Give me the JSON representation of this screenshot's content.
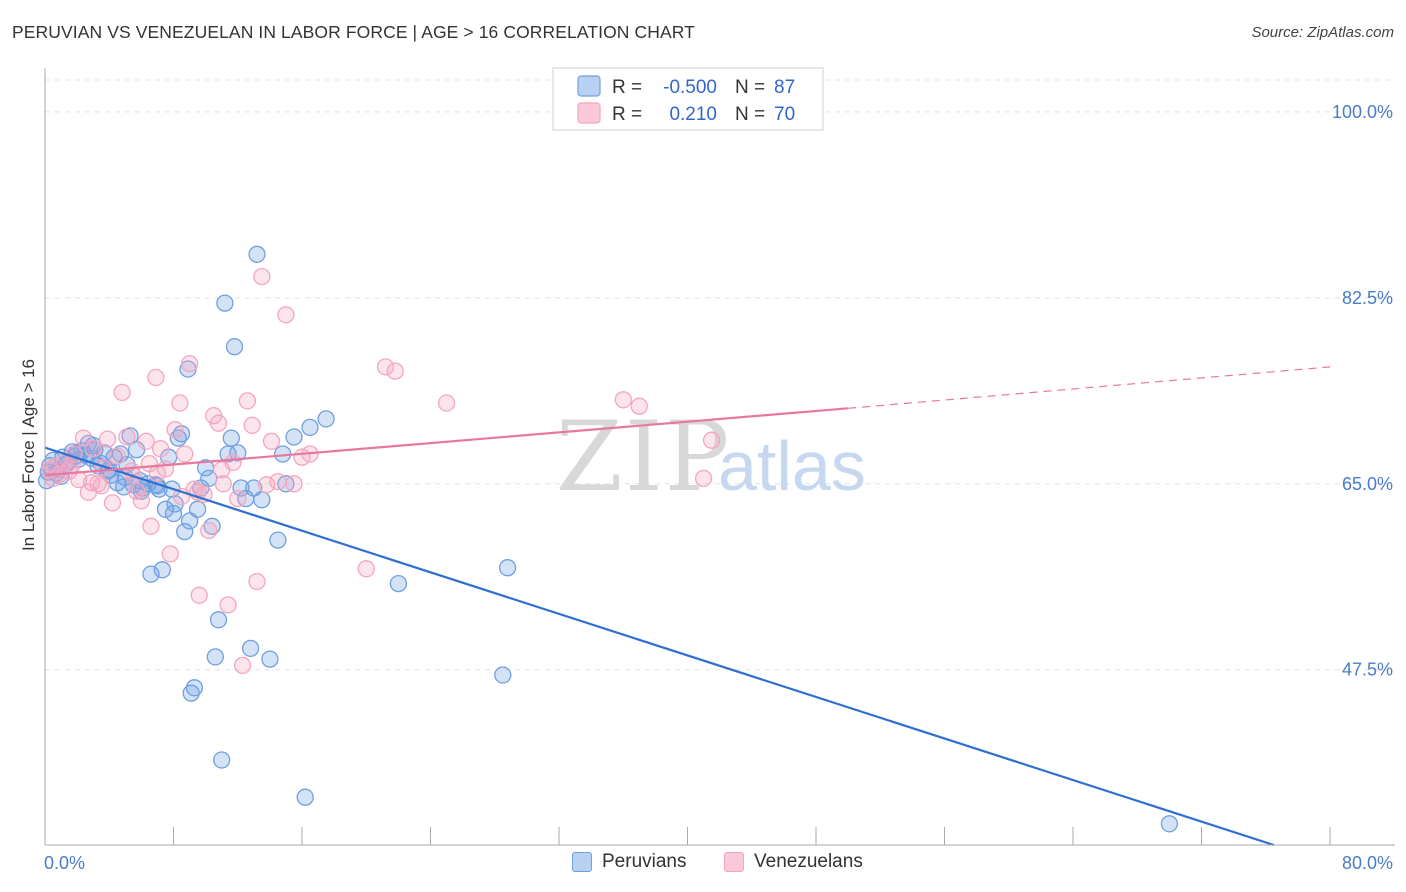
{
  "chart_data": {
    "type": "scatter",
    "title": "PERUVIAN VS VENEZUELAN IN LABOR FORCE | AGE > 16 CORRELATION CHART",
    "source": "Source: ZipAtlas.com",
    "xlabel": "",
    "ylabel": "In Labor Force | Age > 16",
    "xlim": [
      0,
      80
    ],
    "ylim": [
      31,
      103
    ],
    "x_tick_labels": [
      "0.0%",
      "80.0%"
    ],
    "y_ticks": [
      100,
      82.5,
      65,
      47.5
    ],
    "y_tick_labels": [
      "100.0%",
      "82.5%",
      "65.0%",
      "47.5%"
    ],
    "watermark": "ZIPatlas",
    "legend": {
      "r_label": "R =",
      "n_label": "N =",
      "rows": [
        {
          "name": "Peruvians",
          "r": "-0.500",
          "n": "87"
        },
        {
          "name": "Venezuelans",
          "r": "0.210",
          "n": "70"
        }
      ]
    },
    "series": [
      {
        "name": "Peruvians",
        "color": "#6fa0e0",
        "line_color": "#2e6fd1",
        "trend": {
          "x0": 0,
          "y0": 68.4,
          "x1": 76.5,
          "y1": 31.0,
          "dashed_to": null
        },
        "points": [
          [
            0.1,
            65.3
          ],
          [
            0.3,
            66.7
          ],
          [
            0.5,
            67.2
          ],
          [
            0.7,
            66.0
          ],
          [
            0.9,
            66.4
          ],
          [
            1.1,
            67.5
          ],
          [
            1.3,
            66.8
          ],
          [
            1.5,
            67.1
          ],
          [
            1.7,
            68.0
          ],
          [
            1.9,
            67.6
          ],
          [
            2.1,
            67.3
          ],
          [
            2.3,
            68.1
          ],
          [
            2.5,
            67.7
          ],
          [
            2.7,
            68.8
          ],
          [
            2.9,
            67.4
          ],
          [
            3.1,
            68.2
          ],
          [
            3.3,
            66.7
          ],
          [
            3.5,
            66.9
          ],
          [
            3.7,
            67.9
          ],
          [
            3.9,
            66.2
          ],
          [
            4.1,
            65.8
          ],
          [
            4.3,
            67.5
          ],
          [
            4.5,
            65.1
          ],
          [
            4.7,
            67.8
          ],
          [
            4.9,
            64.7
          ],
          [
            5.1,
            66.8
          ],
          [
            5.3,
            69.5
          ],
          [
            5.5,
            64.9
          ],
          [
            5.7,
            68.2
          ],
          [
            5.9,
            65.3
          ],
          [
            6.1,
            64.6
          ],
          [
            6.4,
            65.0
          ],
          [
            6.6,
            56.5
          ],
          [
            6.9,
            64.9
          ],
          [
            7.1,
            64.5
          ],
          [
            7.3,
            56.9
          ],
          [
            7.5,
            62.6
          ],
          [
            7.7,
            67.5
          ],
          [
            7.9,
            64.5
          ],
          [
            8.1,
            63.1
          ],
          [
            8.3,
            69.3
          ],
          [
            8.5,
            69.7
          ],
          [
            8.7,
            60.5
          ],
          [
            8.9,
            75.8
          ],
          [
            9.1,
            45.3
          ],
          [
            9.3,
            45.8
          ],
          [
            9.5,
            62.6
          ],
          [
            9.7,
            64.6
          ],
          [
            10.0,
            66.5
          ],
          [
            10.2,
            65.5
          ],
          [
            10.4,
            61.0
          ],
          [
            10.6,
            48.7
          ],
          [
            10.8,
            52.2
          ],
          [
            11.0,
            39.0
          ],
          [
            11.2,
            82.0
          ],
          [
            11.4,
            67.8
          ],
          [
            11.6,
            69.3
          ],
          [
            11.8,
            77.9
          ],
          [
            12.0,
            67.9
          ],
          [
            12.2,
            64.6
          ],
          [
            12.5,
            63.6
          ],
          [
            12.8,
            49.5
          ],
          [
            13.0,
            64.6
          ],
          [
            13.2,
            86.6
          ],
          [
            13.5,
            63.5
          ],
          [
            14.0,
            48.5
          ],
          [
            14.5,
            59.7
          ],
          [
            14.8,
            67.8
          ],
          [
            15.0,
            65.0
          ],
          [
            15.5,
            69.4
          ],
          [
            16.2,
            35.5
          ],
          [
            16.5,
            70.3
          ],
          [
            17.5,
            71.1
          ],
          [
            22.0,
            55.6
          ],
          [
            28.5,
            47.0
          ],
          [
            28.8,
            57.1
          ],
          [
            70.0,
            33.0
          ],
          [
            0.2,
            66.1
          ],
          [
            1.0,
            65.7
          ],
          [
            2.0,
            67.9
          ],
          [
            3.0,
            68.6
          ],
          [
            4.0,
            66.3
          ],
          [
            5.0,
            65.6
          ],
          [
            6.0,
            64.3
          ],
          [
            7.0,
            64.8
          ],
          [
            8.0,
            62.2
          ],
          [
            9.0,
            61.5
          ]
        ]
      },
      {
        "name": "Venezuelans",
        "color": "#f4a6bf",
        "line_color": "#e8789f",
        "trend": {
          "x0": 0,
          "y0": 65.8,
          "x1": 50.0,
          "y1": 72.1,
          "dashed_to": [
            80.0,
            76.0
          ]
        },
        "points": [
          [
            0.3,
            66.3
          ],
          [
            0.6,
            66.6
          ],
          [
            0.9,
            65.9
          ],
          [
            1.2,
            67.0
          ],
          [
            1.5,
            66.2
          ],
          [
            1.8,
            67.8
          ],
          [
            2.1,
            65.4
          ],
          [
            2.4,
            69.3
          ],
          [
            2.7,
            64.2
          ],
          [
            3.0,
            68.3
          ],
          [
            3.3,
            65.0
          ],
          [
            3.6,
            66.5
          ],
          [
            3.9,
            69.2
          ],
          [
            4.2,
            63.2
          ],
          [
            4.5,
            67.6
          ],
          [
            4.8,
            73.6
          ],
          [
            5.1,
            69.4
          ],
          [
            5.4,
            66.2
          ],
          [
            5.7,
            64.3
          ],
          [
            6.0,
            63.4
          ],
          [
            6.3,
            69.0
          ],
          [
            6.6,
            61.0
          ],
          [
            6.9,
            75.0
          ],
          [
            7.2,
            68.3
          ],
          [
            7.5,
            66.4
          ],
          [
            7.8,
            58.4
          ],
          [
            8.1,
            70.1
          ],
          [
            8.4,
            72.6
          ],
          [
            8.7,
            67.8
          ],
          [
            9.0,
            76.3
          ],
          [
            9.3,
            64.5
          ],
          [
            9.6,
            54.5
          ],
          [
            9.9,
            64.0
          ],
          [
            10.2,
            60.6
          ],
          [
            10.5,
            71.4
          ],
          [
            10.8,
            70.7
          ],
          [
            11.1,
            65.0
          ],
          [
            11.4,
            53.6
          ],
          [
            11.7,
            67.0
          ],
          [
            12.0,
            63.6
          ],
          [
            12.3,
            47.9
          ],
          [
            12.6,
            72.8
          ],
          [
            12.9,
            70.5
          ],
          [
            13.2,
            55.8
          ],
          [
            13.5,
            84.5
          ],
          [
            13.8,
            64.9
          ],
          [
            14.1,
            69.0
          ],
          [
            14.5,
            65.2
          ],
          [
            15.0,
            80.9
          ],
          [
            15.5,
            65.0
          ],
          [
            16.0,
            67.5
          ],
          [
            16.5,
            67.8
          ],
          [
            20.0,
            57.0
          ],
          [
            21.2,
            76.0
          ],
          [
            21.8,
            75.6
          ],
          [
            25.0,
            72.6
          ],
          [
            36.0,
            72.9
          ],
          [
            37.0,
            72.3
          ],
          [
            41.0,
            65.5
          ],
          [
            41.5,
            69.1
          ],
          [
            0.5,
            65.5
          ],
          [
            1.7,
            66.8
          ],
          [
            2.9,
            65.1
          ],
          [
            3.5,
            64.8
          ],
          [
            5.5,
            65.8
          ],
          [
            6.5,
            66.9
          ],
          [
            7.0,
            66.0
          ],
          [
            8.5,
            63.8
          ],
          [
            9.5,
            64.2
          ],
          [
            11.0,
            66.3
          ]
        ]
      }
    ]
  }
}
